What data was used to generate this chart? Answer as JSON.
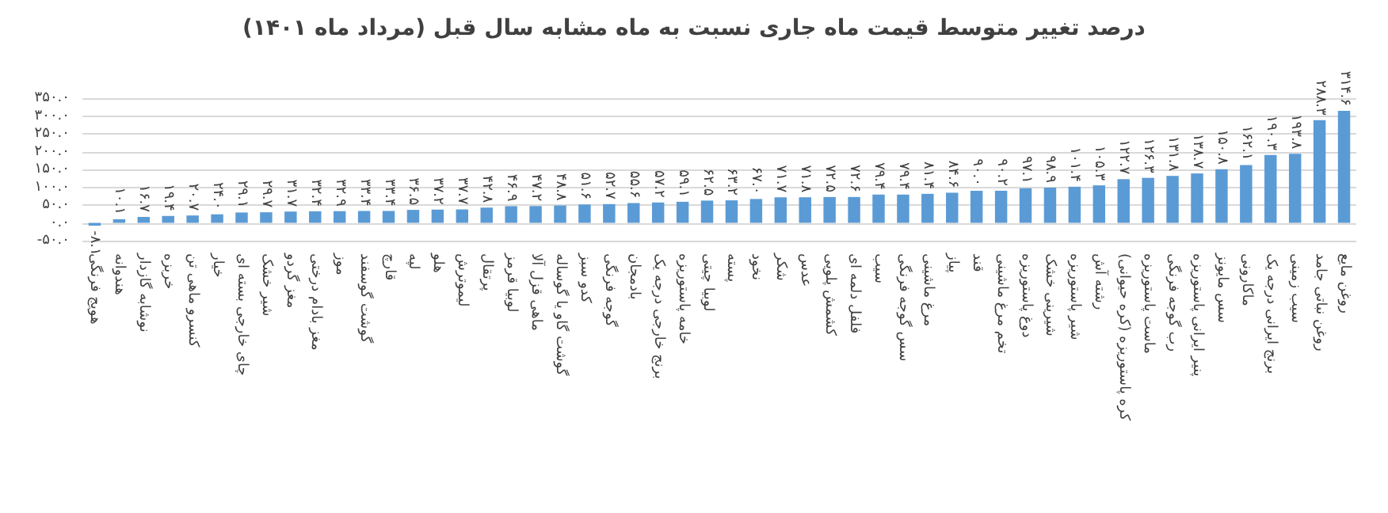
{
  "chart_data": {
    "type": "bar",
    "title": "درصد تغییر متوسط قیمت ماه جاری نسبت به ماه مشابه سال قبل (مرداد ماه ۱۴۰۱)",
    "categories": [
      "هویج فرنگی",
      "هندوانه",
      "نوشابه گازدار",
      "خربزه",
      "کنسرو ماهی تن",
      "خیار",
      "چای خارجی بسته ای",
      "شیر خشک",
      "مغز گردو",
      "مغز بادام درختی",
      "موز",
      "گوشت گوسفند",
      "قارچ",
      "لپه",
      "هلو",
      "لیموترش",
      "پرتقال",
      "لوبیا قرمز",
      "ماهی قزل آلا",
      "گوشت گاو یا گوساله",
      "کدو سبز",
      "گوجه فرنگی",
      "بادمجان",
      "برنج خارجی درجه یک",
      "خامه پاستوریزه",
      "لوبیا چیتی",
      "پسته",
      "نخود",
      "شکر",
      "عدس",
      "کشمش پلویی",
      "فلفل دلمه ای",
      "سیب",
      "سس گوجه فرنگی",
      "مرغ ماشینی",
      "پیاز",
      "قند",
      "تخم مرغ ماشینی",
      "دوغ پاستوریزه",
      "شیرینی خشک",
      "شیر پاستوریزه",
      "رشته آش",
      "کره پاستوریزه (کره حیوانی)",
      "ماست پاستوریزه",
      "رب گوجه فرنگی",
      "پنیر ایرانی پاستوریزه",
      "سس مایونز",
      "ماکارونی",
      "برنج ایرانی درجه یک",
      "سیب زمینی",
      "روغن نباتی جامد",
      "روغن مایع"
    ],
    "values": [
      -8.1,
      10.1,
      16.7,
      19.4,
      20.7,
      24.0,
      29.1,
      29.7,
      31.7,
      32.4,
      32.9,
      33.4,
      33.4,
      36.5,
      37.2,
      37.7,
      42.8,
      46.9,
      47.2,
      48.8,
      51.6,
      52.7,
      55.6,
      57.2,
      59.1,
      62.5,
      63.2,
      67.0,
      71.7,
      71.8,
      72.5,
      72.6,
      79.4,
      79.4,
      81.4,
      84.6,
      90.0,
      90.2,
      97.1,
      98.9,
      101.4,
      105.3,
      122.7,
      126.3,
      131.8,
      138.7,
      150.8,
      162.1,
      190.3,
      193.8,
      288.3,
      314.6
    ],
    "value_labels": [
      "-۸.۱",
      "۱۰.۱",
      "۱۶.۷",
      "۱۹.۴",
      "۲۰.۷",
      "۲۴.۰",
      "۲۹.۱",
      "۲۹.۷",
      "۳۱.۷",
      "۳۲.۴",
      "۳۲.۹",
      "۳۳.۴",
      "۳۳.۴",
      "۳۶.۵",
      "۳۷.۲",
      "۳۷.۷",
      "۴۲.۸",
      "۴۶.۹",
      "۴۷.۲",
      "۴۸.۸",
      "۵۱.۶",
      "۵۲.۷",
      "۵۵.۶",
      "۵۷.۲",
      "۵۹.۱",
      "۶۲.۵",
      "۶۳.۲",
      "۶۷.۰",
      "۷۱.۷",
      "۷۱.۸",
      "۷۲.۵",
      "۷۲.۶",
      "۷۹.۴",
      "۷۹.۴",
      "۸۱.۴",
      "۸۴.۶",
      "۹۰.۰",
      "۹۰.۲",
      "۹۷.۱",
      "۹۸.۹",
      "۱۰۱.۴",
      "۱۰۵.۳",
      "۱۲۲.۷",
      "۱۲۶.۳",
      "۱۳۱.۸",
      "۱۳۸.۷",
      "۱۵۰.۸",
      "۱۶۲.۱",
      "۱۹۰.۳",
      "۱۹۳.۸",
      "۲۸۸.۳",
      "۳۱۴.۶"
    ],
    "color": "#5b9bd5",
    "ylim": [
      -50,
      350
    ],
    "yticks": [
      {
        "value": -50,
        "label": "-۵۰.۰"
      },
      {
        "value": 0,
        "label": "۰.۰"
      },
      {
        "value": 50,
        "label": "۵۰.۰"
      },
      {
        "value": 100,
        "label": "۱۰۰.۰"
      },
      {
        "value": 150,
        "label": "۱۵۰.۰"
      },
      {
        "value": 200,
        "label": "۲۰۰.۰"
      },
      {
        "value": 250,
        "label": "۲۵۰.۰"
      },
      {
        "value": 300,
        "label": "۳۰۰.۰"
      },
      {
        "value": 350,
        "label": "۳۵۰.۰"
      }
    ],
    "grid": "y"
  }
}
